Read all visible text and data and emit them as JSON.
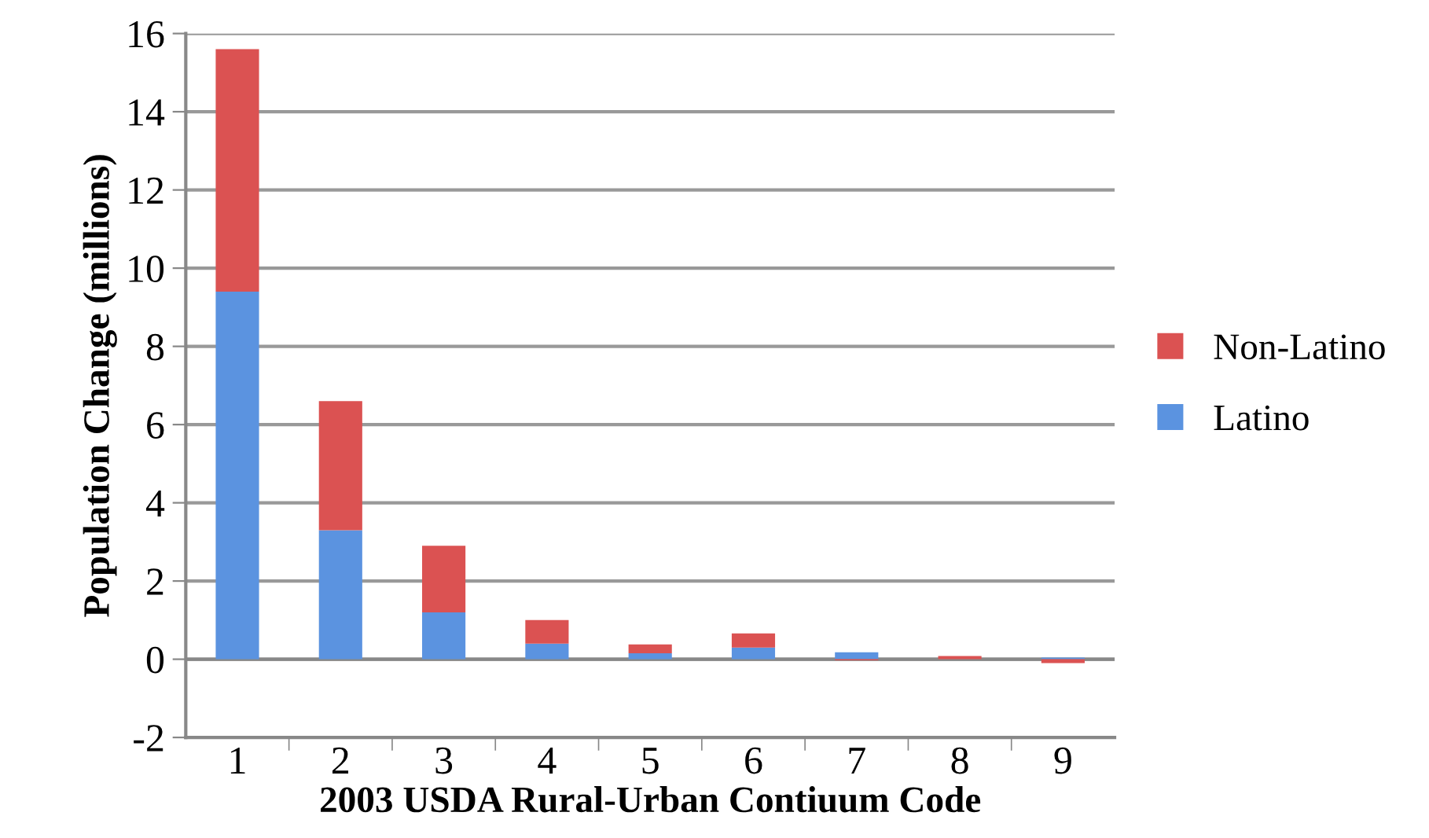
{
  "chart_data": {
    "type": "bar",
    "stacked": true,
    "categories": [
      "1",
      "2",
      "3",
      "4",
      "5",
      "6",
      "7",
      "8",
      "9"
    ],
    "series": [
      {
        "name": "Latino",
        "color": "#5b93e0",
        "values": [
          9.4,
          3.3,
          1.2,
          0.4,
          0.15,
          0.3,
          0.18,
          0.0,
          0.04
        ]
      },
      {
        "name": "Non-Latino",
        "color": "#db5252",
        "values": [
          6.2,
          3.3,
          1.7,
          0.6,
          0.23,
          0.36,
          -0.03,
          0.08,
          -0.1
        ]
      }
    ],
    "xlabel": "2003 USDA Rural-Urban Contiuum Code",
    "ylabel": "Population Change (millions)",
    "ylim": [
      -2,
      16
    ],
    "yticks": [
      -2,
      0,
      2,
      4,
      6,
      8,
      10,
      12,
      14,
      16
    ],
    "grid": "y",
    "legend": "right"
  }
}
